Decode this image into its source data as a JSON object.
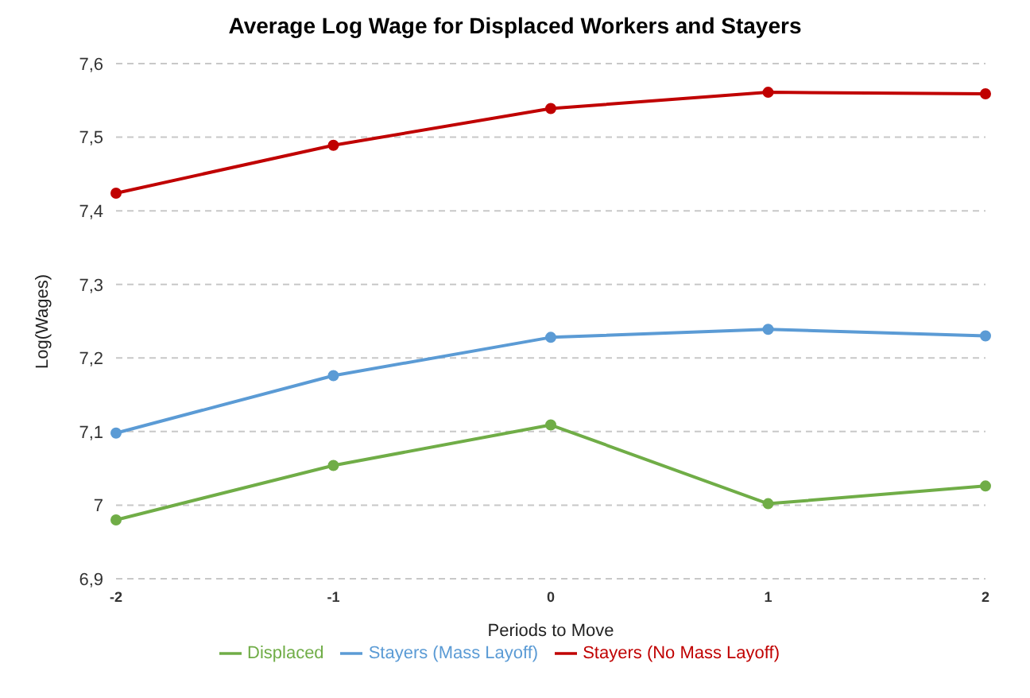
{
  "chart_data": {
    "type": "line",
    "title": "Average Log Wage for Displaced Workers and Stayers",
    "xlabel": "Periods to Move",
    "ylabel": "Log(Wages)",
    "categories": [
      "-2",
      "-1",
      "0",
      "1",
      "2"
    ],
    "series": [
      {
        "name": "Displaced",
        "color": "#70ad47",
        "values": [
          6.98,
          7.054,
          7.109,
          7.002,
          7.026
        ]
      },
      {
        "name": "Stayers (Mass Layoff)",
        "color": "#5b9bd5",
        "values": [
          7.098,
          7.176,
          7.228,
          7.239,
          7.23
        ]
      },
      {
        "name": "Stayers (No Mass Layoff)",
        "color": "#c00000",
        "values": [
          7.424,
          7.489,
          7.539,
          7.561,
          7.559
        ]
      }
    ],
    "ylim": [
      6.9,
      7.6
    ],
    "yticks": [
      {
        "value": 6.9,
        "label": "6,9"
      },
      {
        "value": 7,
        "label": "7"
      },
      {
        "value": 7.1,
        "label": "7,1"
      },
      {
        "value": 7.2,
        "label": "7,2"
      },
      {
        "value": 7.3,
        "label": "7,3"
      },
      {
        "value": 7.4,
        "label": "7,4"
      },
      {
        "value": 7.5,
        "label": "7,5"
      },
      {
        "value": 7.6,
        "label": "7,6"
      }
    ],
    "grid": "y",
    "legend": "bottom",
    "marker": "circle",
    "line_style": "solid"
  }
}
